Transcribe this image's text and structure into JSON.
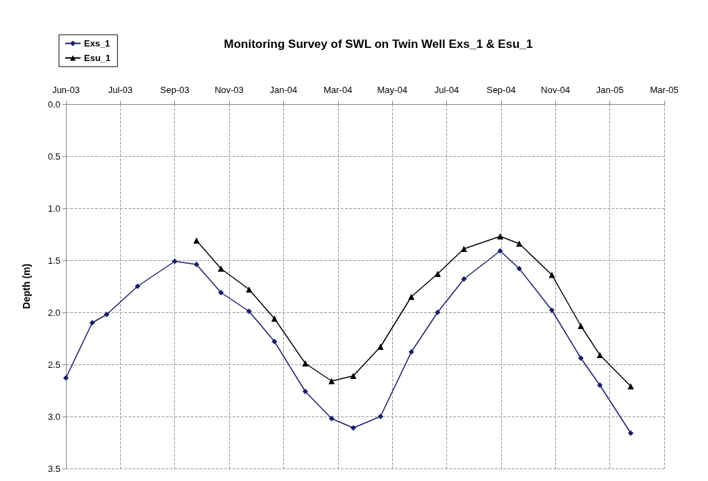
{
  "chart_data": {
    "type": "line",
    "title": "Monitoring Survey of SWL on Twin Well Exs_1 & Esu_1",
    "ylabel": "Depth (m)",
    "x": [
      "2003-06-01",
      "2003-06-30",
      "2003-07-16",
      "2003-08-19",
      "2003-09-29",
      "2003-10-23",
      "2003-11-19",
      "2003-12-20",
      "2004-01-17",
      "2004-02-20",
      "2004-03-20",
      "2004-04-13",
      "2004-05-13",
      "2004-06-16",
      "2004-07-15",
      "2004-08-13",
      "2004-09-22",
      "2004-10-13",
      "2004-11-18",
      "2004-12-20",
      "2005-01-10",
      "2005-02-13"
    ],
    "series": [
      {
        "name": "Exs_1",
        "color": "#1c1c6a",
        "marker": "diamond",
        "values": [
          2.63,
          2.1,
          2.02,
          1.75,
          1.51,
          1.54,
          1.81,
          1.99,
          2.28,
          2.76,
          3.02,
          3.11,
          3.0,
          2.38,
          2.0,
          1.68,
          1.41,
          1.58,
          1.98,
          2.44,
          2.7,
          3.16
        ]
      },
      {
        "name": "Esu_1",
        "color": "#000000",
        "marker": "triangle",
        "x": [
          "2003-10-23",
          "2003-11-19",
          "2003-12-20",
          "2004-01-17",
          "2004-02-20",
          "2004-03-20",
          "2004-04-13",
          "2004-05-13",
          "2004-06-16",
          "2004-07-15",
          "2004-08-13",
          "2004-09-22",
          "2004-10-13",
          "2004-11-18",
          "2004-12-20",
          "2005-01-10",
          "2005-02-13"
        ],
        "values": [
          1.31,
          1.58,
          1.78,
          2.06,
          2.49,
          2.66,
          2.61,
          2.33,
          1.85,
          1.63,
          1.39,
          1.27,
          1.34,
          1.64,
          2.13,
          2.41,
          2.71
        ]
      }
    ],
    "xlim": [
      "2003-06-01",
      "2005-03-22"
    ],
    "xticks": [
      {
        "value": "2003-06-01",
        "label": "Jun-03"
      },
      {
        "value": "2003-07-31",
        "label": "Jul-03"
      },
      {
        "value": "2003-09-29",
        "label": "Sep-03"
      },
      {
        "value": "2003-11-28",
        "label": "Nov-03"
      },
      {
        "value": "2004-01-27",
        "label": "Jan-04"
      },
      {
        "value": "2004-03-27",
        "label": "Mar-04"
      },
      {
        "value": "2004-05-26",
        "label": "May-04"
      },
      {
        "value": "2004-07-25",
        "label": "Jul-04"
      },
      {
        "value": "2004-09-23",
        "label": "Sep-04"
      },
      {
        "value": "2004-11-22",
        "label": "Nov-04"
      },
      {
        "value": "2005-01-21",
        "label": "Jan-05"
      },
      {
        "value": "2005-03-22",
        "label": "Mar-05"
      }
    ],
    "ylim": [
      3.5,
      0
    ],
    "yticks": [
      {
        "value": 0,
        "label": "0.0"
      },
      {
        "value": 0.5,
        "label": "0.5"
      },
      {
        "value": 1,
        "label": "1.0"
      },
      {
        "value": 1.5,
        "label": "1.5"
      },
      {
        "value": 2,
        "label": "2.0"
      },
      {
        "value": 2.5,
        "label": "2.5"
      },
      {
        "value": 3,
        "label": "3.0"
      },
      {
        "value": 3.5,
        "label": "3.5"
      }
    ],
    "grid": true,
    "legend": "top left",
    "line_style": "solid"
  }
}
